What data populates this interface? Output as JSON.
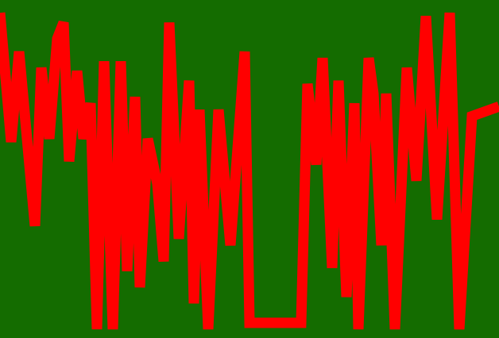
{
  "scene": {
    "background_color": "#146c00",
    "line_color": "#ff0000",
    "trace_level": [
      0.98,
      0.58,
      0.86,
      0.32,
      0.81,
      0.59,
      0.9,
      0.95,
      0.52,
      0.8,
      0.59,
      0.7,
      0.0,
      0.83,
      0.0,
      0.83,
      0.18,
      0.72,
      0.13,
      0.59,
      0.45,
      0.21,
      0.95,
      0.28,
      0.77,
      0.08,
      0.68,
      0.0,
      0.68,
      0.26,
      0.86,
      0.02,
      0.02,
      0.02,
      0.76,
      0.51,
      0.84,
      0.19,
      0.77,
      0.1,
      0.7,
      0.0,
      0.84,
      0.73,
      0.26,
      0.73,
      0.0,
      0.81,
      0.46,
      0.97,
      0.34,
      0.98,
      0.0,
      0.66,
      0.69
    ]
  }
}
